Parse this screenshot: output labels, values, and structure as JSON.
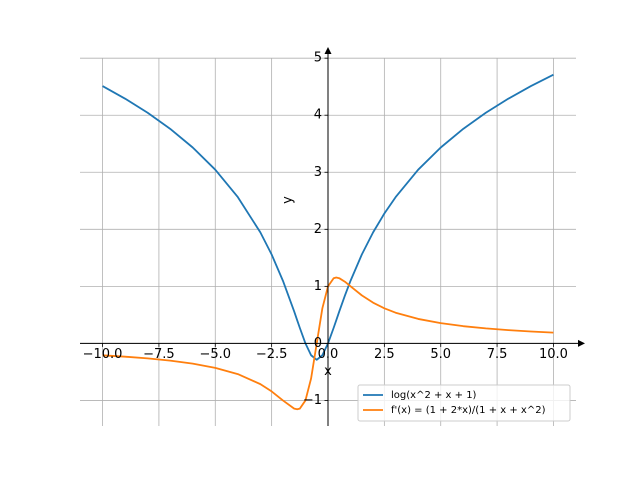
{
  "chart_data": {
    "type": "line",
    "x_label": "x",
    "y_label": "y",
    "x": [
      -10,
      -9,
      -8,
      -7,
      -6,
      -5,
      -4,
      -3,
      -2.5,
      -2,
      -1.5,
      -1.366,
      -1.25,
      -1,
      -0.75,
      -0.5,
      -0.25,
      0,
      0.25,
      0.366,
      0.5,
      0.75,
      1,
      1.5,
      2,
      2.5,
      3,
      4,
      5,
      6,
      7,
      8,
      9,
      10
    ],
    "series": [
      {
        "name": "log(x^2 + x + 1)",
        "color": "#1f77b4",
        "values": [
          4.511,
          4.29,
          4.043,
          3.761,
          3.434,
          3.045,
          2.565,
          1.946,
          1.558,
          1.099,
          0.56,
          0.405,
          0.272,
          0,
          -0.208,
          -0.288,
          -0.208,
          0,
          0.272,
          0.405,
          0.56,
          0.838,
          1.099,
          1.558,
          1.946,
          2.277,
          2.565,
          3.045,
          3.434,
          3.761,
          4.043,
          4.29,
          4.511,
          4.71
        ]
      },
      {
        "name": "f'(x) = (1 + 2*x)/(1 + x + x^2)",
        "color": "#ff7f0e",
        "values": [
          -0.209,
          -0.233,
          -0.263,
          -0.302,
          -0.355,
          -0.429,
          -0.538,
          -0.714,
          -0.842,
          -1,
          -1.143,
          -1.155,
          -1.143,
          -1,
          -0.615,
          0,
          0.615,
          1,
          1.143,
          1.155,
          1.143,
          1.081,
          1,
          0.842,
          0.714,
          0.615,
          0.538,
          0.429,
          0.355,
          0.302,
          0.263,
          0.233,
          0.209,
          0.189
        ]
      }
    ],
    "xlim": [
      -11,
      11
    ],
    "ylim": [
      -1.448,
      5.003
    ],
    "xticks": [
      {
        "value": -10,
        "label": "−10.0"
      },
      {
        "value": -7.5,
        "label": "−7.5"
      },
      {
        "value": -5,
        "label": "−5.0"
      },
      {
        "value": -2.5,
        "label": "−2.5"
      },
      {
        "value": 0,
        "label": "0.0"
      },
      {
        "value": 2.5,
        "label": "2.5"
      },
      {
        "value": 5,
        "label": "5.0"
      },
      {
        "value": 7.5,
        "label": "7.5"
      },
      {
        "value": 10,
        "label": "10.0"
      }
    ],
    "yticks": [
      {
        "value": -1,
        "label": "−1"
      },
      0,
      1,
      2,
      3,
      4,
      5
    ],
    "grid": true,
    "legend": "lower right"
  }
}
